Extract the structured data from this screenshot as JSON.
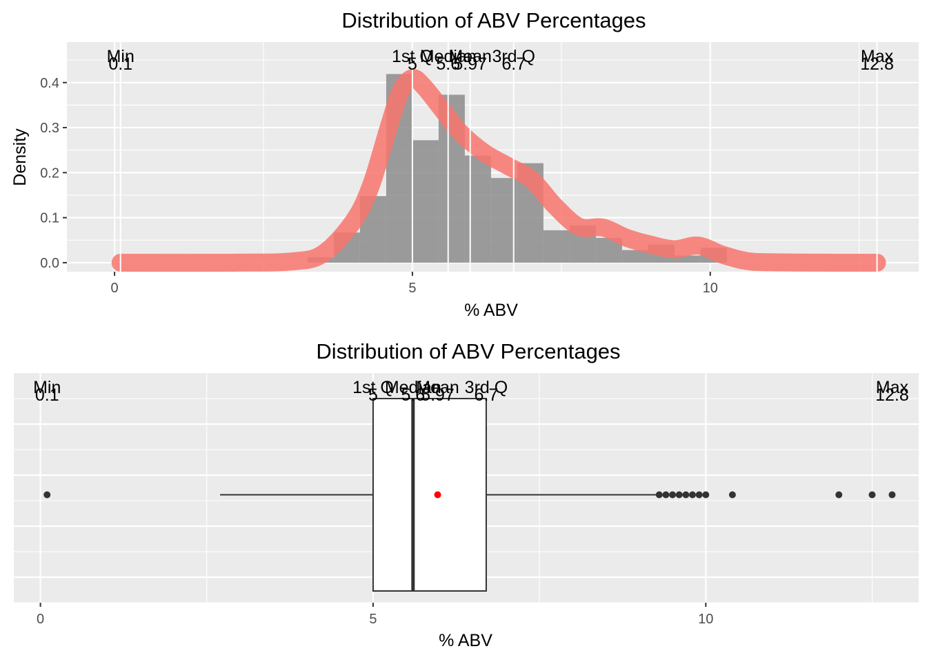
{
  "chart_data": [
    {
      "type": "histogram+density",
      "title": "Distribution of ABV Percentages",
      "xlabel": "% ABV",
      "ylabel": "Density",
      "xlim": [
        -0.8,
        13.5
      ],
      "ylim": [
        -0.02,
        0.49
      ],
      "x_ticks": [
        0,
        5,
        10
      ],
      "x_tick_labels": [
        "0",
        "5",
        "10"
      ],
      "y_ticks": [
        0,
        0.1,
        0.2,
        0.3,
        0.4
      ],
      "y_tick_labels": [
        "0.0",
        "0.1",
        "0.2",
        "0.3",
        "0.4"
      ],
      "grid": true,
      "histogram": {
        "bin_width": 0.44,
        "bins": [
          {
            "x0": 3.24,
            "x1": 3.68,
            "density": 0.012
          },
          {
            "x0": 3.68,
            "x1": 4.12,
            "density": 0.067
          },
          {
            "x0": 4.12,
            "x1": 4.56,
            "density": 0.148
          },
          {
            "x0": 4.56,
            "x1": 5.0,
            "density": 0.419
          },
          {
            "x0": 5.0,
            "x1": 5.44,
            "density": 0.272
          },
          {
            "x0": 5.44,
            "x1": 5.88,
            "density": 0.373
          },
          {
            "x0": 5.88,
            "x1": 6.32,
            "density": 0.238
          },
          {
            "x0": 6.32,
            "x1": 6.76,
            "density": 0.188
          },
          {
            "x0": 6.76,
            "x1": 7.2,
            "density": 0.221
          },
          {
            "x0": 7.2,
            "x1": 7.64,
            "density": 0.072
          },
          {
            "x0": 7.64,
            "x1": 8.08,
            "density": 0.083
          },
          {
            "x0": 8.08,
            "x1": 8.52,
            "density": 0.055
          },
          {
            "x0": 8.52,
            "x1": 8.96,
            "density": 0.028
          },
          {
            "x0": 8.96,
            "x1": 9.4,
            "density": 0.04
          },
          {
            "x0": 9.4,
            "x1": 9.84,
            "density": 0.016
          },
          {
            "x0": 9.84,
            "x1": 10.28,
            "density": 0.033
          }
        ]
      },
      "density_curve": {
        "x": [
          0.1,
          2.0,
          3.0,
          3.5,
          4.0,
          4.3,
          4.6,
          4.8,
          5.0,
          5.2,
          5.5,
          5.8,
          6.2,
          6.6,
          7.0,
          7.4,
          7.8,
          8.2,
          8.6,
          9.0,
          9.4,
          9.8,
          10.2,
          10.6,
          11.0,
          12.0,
          12.8
        ],
        "y": [
          0.0,
          0.0,
          0.003,
          0.02,
          0.09,
          0.17,
          0.3,
          0.38,
          0.41,
          0.39,
          0.34,
          0.29,
          0.245,
          0.215,
          0.185,
          0.125,
          0.08,
          0.078,
          0.055,
          0.04,
          0.03,
          0.038,
          0.018,
          0.004,
          0.001,
          0.0,
          0.0
        ]
      },
      "annotations": [
        {
          "label": "Min",
          "value": "0.1",
          "x": 0.1
        },
        {
          "label": "1st Q",
          "value": "5",
          "x": 5.0
        },
        {
          "label": "Median",
          "value": "5.6",
          "x": 5.6
        },
        {
          "label": "Mean",
          "value": "5.97",
          "x": 5.97
        },
        {
          "label": "3rd Q",
          "value": "6.7",
          "x": 6.7
        },
        {
          "label": "Max",
          "value": "12.8",
          "x": 12.8
        }
      ],
      "colors": {
        "panel": "#ebebeb",
        "histogram": "#8c8c8c",
        "density": "#f8766d"
      }
    },
    {
      "type": "boxplot",
      "title": "Distribution of ABV Percentages",
      "xlabel": "% ABV",
      "xlim": [
        -0.4,
        13.2
      ],
      "x_ticks": [
        0,
        5,
        10
      ],
      "x_tick_labels": [
        "0",
        "5",
        "10"
      ],
      "grid": true,
      "box": {
        "q1": 5.0,
        "median": 5.6,
        "q3": 6.7,
        "mean": 5.97,
        "whisker_low": 2.7,
        "whisker_high": 9.3
      },
      "outliers": [
        0.1,
        9.3,
        9.4,
        9.5,
        9.6,
        9.7,
        9.8,
        9.9,
        10.0,
        10.4,
        12.0,
        12.5,
        12.8
      ],
      "annotations": [
        {
          "label": "Min",
          "value": "0.1",
          "x": 0.1
        },
        {
          "label": "1st Q",
          "value": "5",
          "x": 5.0
        },
        {
          "label": "Median",
          "value": "5.6",
          "x": 5.6
        },
        {
          "label": "Mean",
          "value": "5.97",
          "x": 5.97
        },
        {
          "label": "3rd Q",
          "value": "6.7",
          "x": 6.7
        },
        {
          "label": "Max",
          "value": "12.8",
          "x": 12.8
        }
      ],
      "colors": {
        "panel": "#ebebeb",
        "box_fill": "#ffffff",
        "box_line": "#333333",
        "outlier": "#333333",
        "mean_point": "#ff0000"
      }
    }
  ]
}
